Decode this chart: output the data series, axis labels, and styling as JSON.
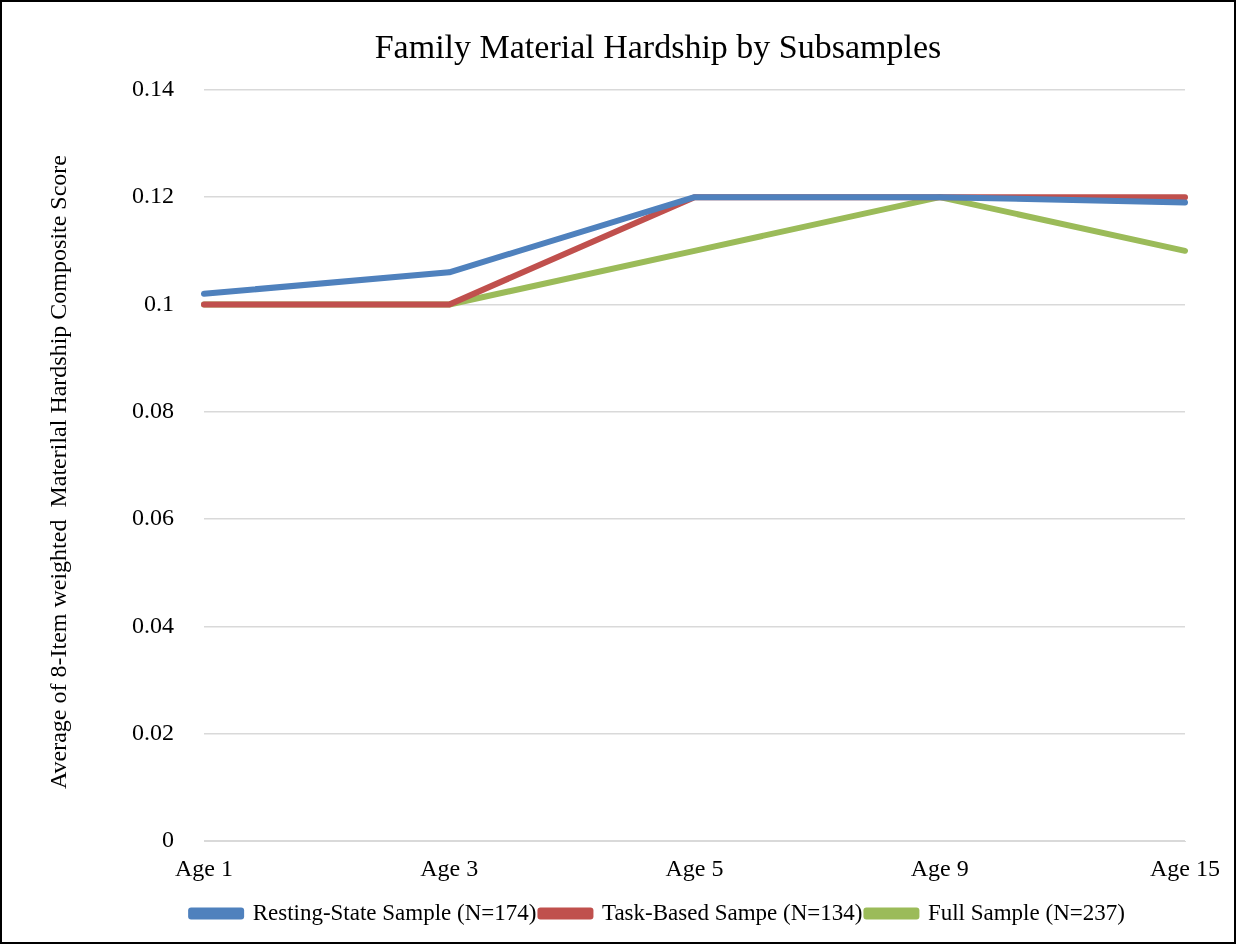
{
  "chart_data": {
    "type": "line",
    "title": "Family Material Hardship by Subsamples",
    "ylabel": "Average of 8-Item weighted  Materilal Hardship Composite Score",
    "categories": [
      "Age 1",
      "Age 3",
      "Age 5",
      "Age 9",
      "Age 15"
    ],
    "series": [
      {
        "name": "Resting-State Sample (N=174)",
        "color": "#4f81bd",
        "values": [
          0.102,
          0.106,
          0.12,
          0.12,
          0.119
        ]
      },
      {
        "name": "Task-Based Sampe (N=134)",
        "color": "#c0504d",
        "values": [
          0.1,
          0.1,
          0.12,
          0.12,
          0.12
        ]
      },
      {
        "name": "Full Sample (N=237)",
        "color": "#9bbb59",
        "values": [
          0.1,
          0.1,
          0.11,
          0.12,
          0.11
        ]
      }
    ],
    "ylim": [
      0,
      0.14
    ],
    "yticks": [
      0,
      0.02,
      0.04,
      0.06,
      0.08,
      0.1,
      0.12,
      0.14
    ],
    "grid": "y",
    "legend": "bottom",
    "marker": "none",
    "line_style": "solid"
  }
}
